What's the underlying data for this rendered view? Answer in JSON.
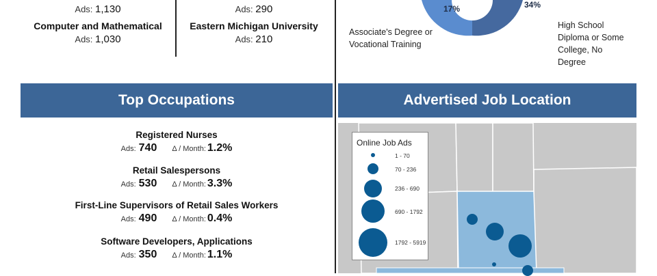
{
  "top_left": {
    "col1": [
      {
        "title": "",
        "ads_label": "Ads:",
        "ads": "1,130"
      },
      {
        "title": "Computer and Mathematical",
        "ads_label": "Ads:",
        "ads": "1,030"
      }
    ],
    "col2": [
      {
        "title": "",
        "ads_label": "Ads:",
        "ads": "290"
      },
      {
        "title": "Eastern Michigan University",
        "ads_label": "Ads:",
        "ads": "210"
      }
    ]
  },
  "education_chart": {
    "labels": [
      {
        "text_lines": [
          "Associate's Degree or",
          "Vocational Training"
        ],
        "pct": "17%"
      },
      {
        "text_lines": [
          "High School",
          "Diploma or Some",
          "College, No",
          "Degree"
        ],
        "pct": "34%"
      }
    ],
    "colors": {
      "light": "#5a8ccf",
      "dark": "#45699f"
    }
  },
  "occupations": {
    "title": "Top Occupations",
    "items": [
      {
        "name": "Registered Nurses",
        "ads_label": "Ads:",
        "ads": "740",
        "delta_label": "Δ / Month:",
        "delta": "1.2%"
      },
      {
        "name": "Retail Salespersons",
        "ads_label": "Ads:",
        "ads": "530",
        "delta_label": "Δ / Month:",
        "delta": "3.3%"
      },
      {
        "name": "First-Line Supervisors of Retail Sales Workers",
        "ads_label": "Ads:",
        "ads": "490",
        "delta_label": "Δ / Month:",
        "delta": "0.4%"
      },
      {
        "name": "Software Developers, Applications",
        "ads_label": "Ads:",
        "ads": "350",
        "delta_label": "Δ / Month:",
        "delta": "1.1%"
      }
    ]
  },
  "location": {
    "title": "Advertised Job Location",
    "legend": {
      "title": "Online Job Ads",
      "items": [
        "1 - 70",
        "70 - 236",
        "236 - 690",
        "690 - 1792",
        "1792 - 5919"
      ]
    },
    "colors": {
      "county": "#c8c8c8",
      "highlight": "#8cb9dc",
      "bubble": "#0b5b92"
    }
  }
}
